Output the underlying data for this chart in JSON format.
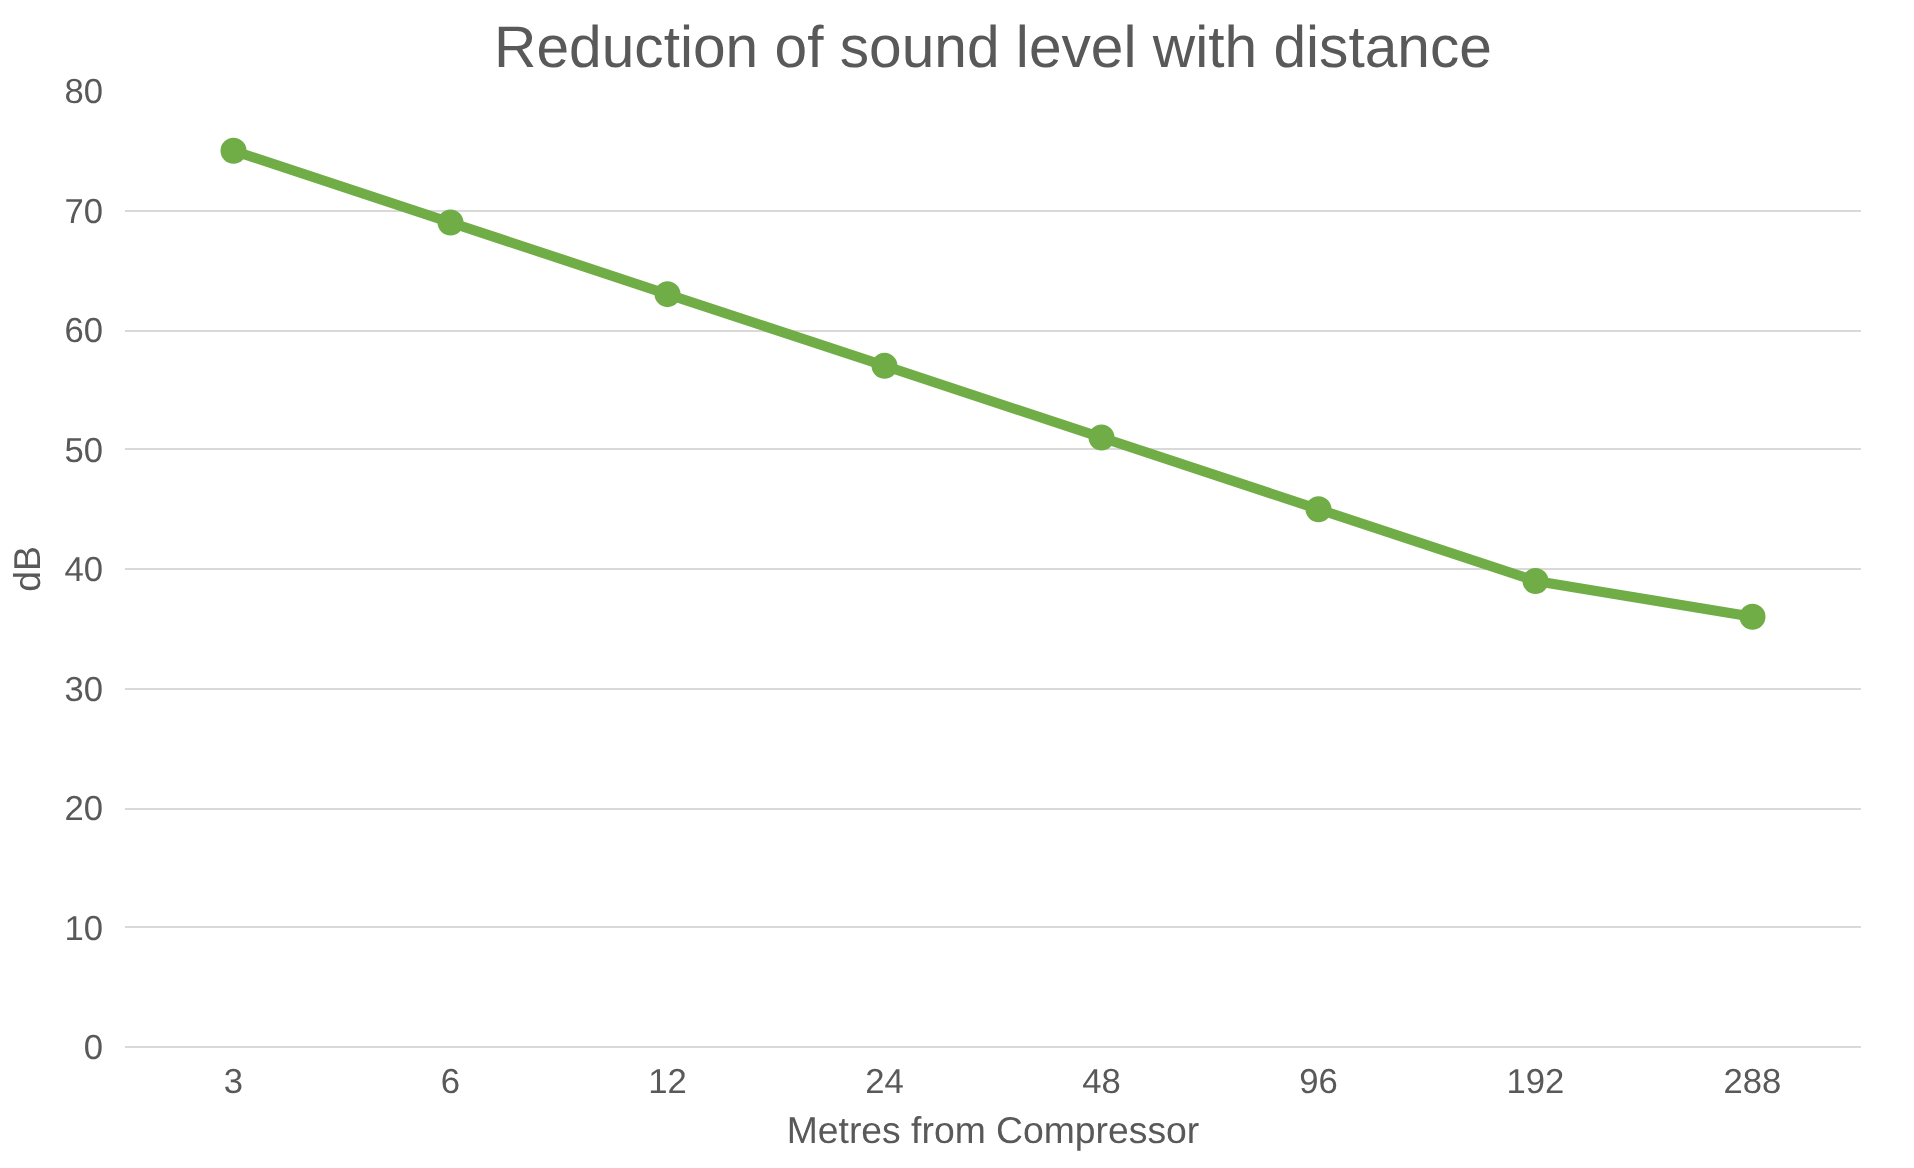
{
  "chart_data": {
    "type": "line",
    "title": "Reduction of sound level with distance",
    "xlabel": "Metres from Compressor",
    "ylabel": "dB",
    "categories": [
      "3",
      "6",
      "12",
      "24",
      "48",
      "96",
      "192",
      "288"
    ],
    "series": [
      {
        "color": "#70ad47",
        "values": [
          75,
          69,
          63,
          57,
          51,
          45,
          39,
          36
        ]
      }
    ],
    "ylim": [
      0,
      80
    ],
    "yticks": [
      0,
      10,
      20,
      30,
      40,
      50,
      60,
      70,
      80
    ],
    "grid": "y",
    "marker": "circle",
    "line_style": "solid"
  }
}
